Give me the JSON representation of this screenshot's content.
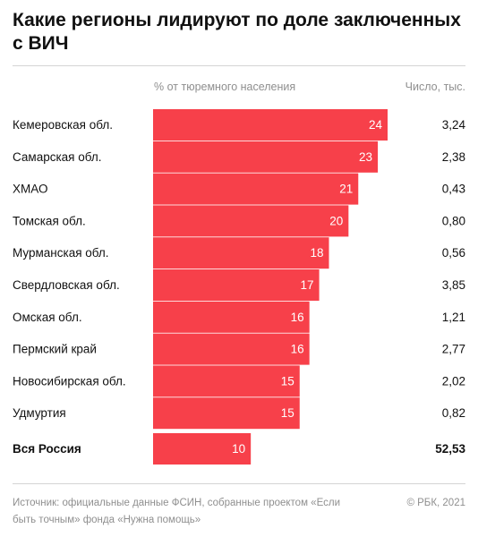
{
  "title": "Какие регионы лидируют по доле заключенных с ВИЧ",
  "columns": {
    "share": "% от тюремного населения",
    "count": "Число, тыс."
  },
  "colors": {
    "bar": "#f7404a",
    "bar_label": "#ffffff",
    "rule": "#d4d4d4",
    "muted_text": "#8f8f8f"
  },
  "chart_data": {
    "type": "bar",
    "orientation": "horizontal",
    "categories": [
      "Кемеровская обл.",
      "Самарская обл.",
      "ХМАО",
      "Томская обл.",
      "Мурманская обл.",
      "Свердловская обл.",
      "Омская обл.",
      "Пермский край",
      "Новосибирская обл.",
      "Удмуртия"
    ],
    "values": [
      24,
      23,
      21,
      20,
      18,
      17,
      16,
      16,
      15,
      15
    ],
    "counts": [
      "3,24",
      "2,38",
      "0,43",
      "0,80",
      "0,56",
      "3,85",
      "1,21",
      "2,77",
      "2,02",
      "0,82"
    ],
    "total": {
      "category": "Вся Россия",
      "value": 10,
      "count": "52,53"
    },
    "xlim": [
      0,
      24
    ],
    "grid": false,
    "legend": "none"
  },
  "footer": {
    "source": "Источник: официальные данные ФСИН, собранные проектом «Если быть точным» фонда «Нужна помощь»",
    "copyright": "© РБК, 2021"
  }
}
